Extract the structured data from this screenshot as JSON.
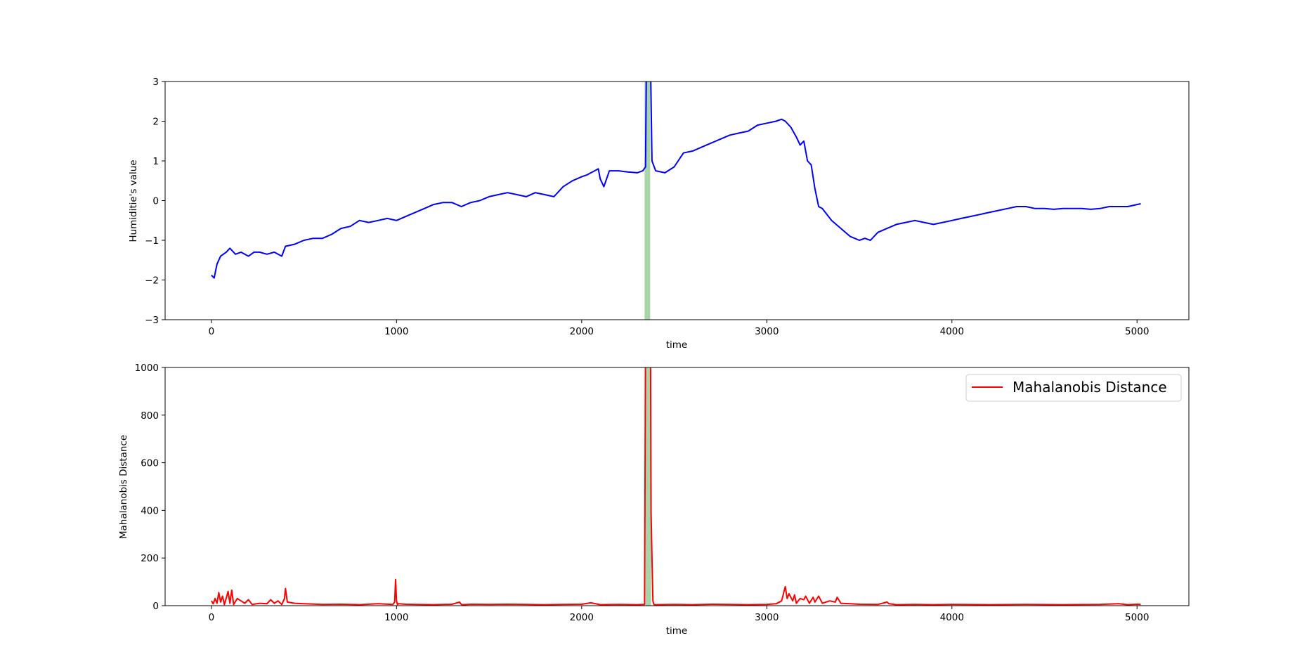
{
  "chart_data": [
    {
      "type": "line",
      "xlabel": "time",
      "ylabel": "Humiditie's value",
      "xlim": [
        -250,
        5280
      ],
      "ylim": [
        -3,
        3
      ],
      "xticks": [
        0,
        1000,
        2000,
        3000,
        4000,
        5000
      ],
      "yticks": [
        -3,
        -2,
        -1,
        0,
        1,
        2,
        3
      ],
      "grid": false,
      "legend": null,
      "highlight": {
        "x_start": 2340,
        "x_end": 2370,
        "color": "#a8d5a8"
      },
      "series": [
        {
          "color": "#0000ff",
          "x": [
            0,
            15,
            30,
            50,
            80,
            100,
            130,
            160,
            200,
            230,
            260,
            300,
            340,
            380,
            400,
            450,
            500,
            550,
            600,
            650,
            700,
            750,
            800,
            850,
            900,
            950,
            1000,
            1050,
            1100,
            1150,
            1200,
            1250,
            1300,
            1350,
            1400,
            1450,
            1500,
            1550,
            1600,
            1650,
            1700,
            1750,
            1800,
            1850,
            1900,
            1950,
            2000,
            2030,
            2050,
            2070,
            2090,
            2100,
            2120,
            2150,
            2200,
            2250,
            2300,
            2330,
            2345,
            2350,
            2355,
            2365,
            2372,
            2380,
            2400,
            2450,
            2500,
            2550,
            2600,
            2650,
            2700,
            2750,
            2800,
            2850,
            2900,
            2950,
            3000,
            3050,
            3080,
            3100,
            3130,
            3160,
            3180,
            3200,
            3220,
            3240,
            3260,
            3280,
            3300,
            3350,
            3400,
            3450,
            3500,
            3530,
            3560,
            3600,
            3650,
            3700,
            3750,
            3800,
            3850,
            3900,
            3950,
            4000,
            4050,
            4100,
            4150,
            4200,
            4250,
            4300,
            4350,
            4400,
            4450,
            4500,
            4550,
            4600,
            4650,
            4700,
            4750,
            4800,
            4850,
            4900,
            4950,
            5000,
            5020
          ],
          "y": [
            -1.88,
            -1.95,
            -1.6,
            -1.4,
            -1.3,
            -1.2,
            -1.35,
            -1.3,
            -1.4,
            -1.3,
            -1.3,
            -1.35,
            -1.3,
            -1.4,
            -1.15,
            -1.1,
            -1.0,
            -0.95,
            -0.95,
            -0.85,
            -0.7,
            -0.65,
            -0.5,
            -0.55,
            -0.5,
            -0.45,
            -0.5,
            -0.4,
            -0.3,
            -0.2,
            -0.1,
            -0.05,
            -0.05,
            -0.15,
            -0.05,
            0.0,
            0.1,
            0.15,
            0.2,
            0.15,
            0.1,
            0.2,
            0.15,
            0.1,
            0.35,
            0.5,
            0.6,
            0.65,
            0.7,
            0.75,
            0.8,
            0.55,
            0.35,
            0.75,
            0.75,
            0.72,
            0.7,
            0.75,
            0.85,
            3.5,
            3.5,
            3.5,
            3.5,
            1.0,
            0.75,
            0.7,
            0.85,
            1.2,
            1.25,
            1.35,
            1.45,
            1.55,
            1.65,
            1.7,
            1.75,
            1.9,
            1.95,
            2.0,
            2.05,
            2.0,
            1.85,
            1.6,
            1.4,
            1.5,
            1.0,
            0.9,
            0.3,
            -0.15,
            -0.2,
            -0.5,
            -0.7,
            -0.9,
            -1.0,
            -0.95,
            -1.0,
            -0.8,
            -0.7,
            -0.6,
            -0.55,
            -0.5,
            -0.55,
            -0.6,
            -0.55,
            -0.5,
            -0.45,
            -0.4,
            -0.35,
            -0.3,
            -0.25,
            -0.2,
            -0.15,
            -0.15,
            -0.2,
            -0.2,
            -0.22,
            -0.2,
            -0.2,
            -0.2,
            -0.22,
            -0.2,
            -0.15,
            -0.15,
            -0.15,
            -0.1,
            -0.08
          ]
        }
      ]
    },
    {
      "type": "line",
      "xlabel": "time",
      "ylabel": "Mahalanobis Distance",
      "xlim": [
        -250,
        5280
      ],
      "ylim": [
        0,
        1000
      ],
      "xticks": [
        0,
        1000,
        2000,
        3000,
        4000,
        5000
      ],
      "yticks": [
        0,
        200,
        400,
        600,
        800,
        1000
      ],
      "grid": false,
      "legend": {
        "position": "upper right"
      },
      "highlight": {
        "x_start": 2345,
        "x_end": 2375,
        "color": "#a8d5a8"
      },
      "series": [
        {
          "name": "Mahalanobis Distance",
          "color": "#ff0000",
          "x": [
            0,
            10,
            20,
            30,
            40,
            50,
            60,
            70,
            80,
            90,
            100,
            110,
            120,
            140,
            160,
            180,
            200,
            220,
            260,
            300,
            320,
            340,
            360,
            380,
            395,
            400,
            410,
            450,
            500,
            600,
            700,
            800,
            900,
            980,
            990,
            995,
            1000,
            1005,
            1010,
            1050,
            1100,
            1200,
            1300,
            1340,
            1350,
            1360,
            1400,
            1500,
            1600,
            1700,
            1800,
            1900,
            2000,
            2050,
            2100,
            2200,
            2300,
            2340,
            2345,
            2355,
            2360,
            2368,
            2372,
            2375,
            2380,
            2385,
            2390,
            2400,
            2500,
            2600,
            2700,
            2800,
            2900,
            3000,
            3050,
            3080,
            3100,
            3110,
            3120,
            3140,
            3150,
            3160,
            3180,
            3200,
            3210,
            3230,
            3250,
            3260,
            3280,
            3300,
            3340,
            3370,
            3380,
            3400,
            3450,
            3500,
            3600,
            3650,
            3660,
            3700,
            3800,
            3900,
            4000,
            4200,
            4400,
            4600,
            4800,
            4900,
            4950,
            5000,
            5020
          ],
          "y": [
            20,
            8,
            30,
            10,
            55,
            15,
            40,
            5,
            30,
            60,
            10,
            65,
            5,
            30,
            20,
            10,
            25,
            5,
            10,
            8,
            25,
            10,
            20,
            5,
            30,
            72,
            15,
            10,
            8,
            5,
            6,
            4,
            8,
            5,
            15,
            110,
            20,
            5,
            8,
            6,
            5,
            4,
            6,
            15,
            5,
            4,
            6,
            5,
            6,
            5,
            4,
            5,
            6,
            12,
            4,
            5,
            4,
            5,
            1100,
            1100,
            1100,
            1100,
            1100,
            390,
            200,
            20,
            5,
            4,
            5,
            4,
            6,
            5,
            4,
            5,
            8,
            20,
            80,
            30,
            50,
            20,
            45,
            10,
            30,
            25,
            40,
            10,
            35,
            15,
            40,
            10,
            20,
            15,
            35,
            10,
            8,
            6,
            5,
            15,
            8,
            4,
            5,
            4,
            5,
            4,
            5,
            4,
            5,
            8,
            4,
            6,
            5
          ]
        }
      ]
    }
  ]
}
